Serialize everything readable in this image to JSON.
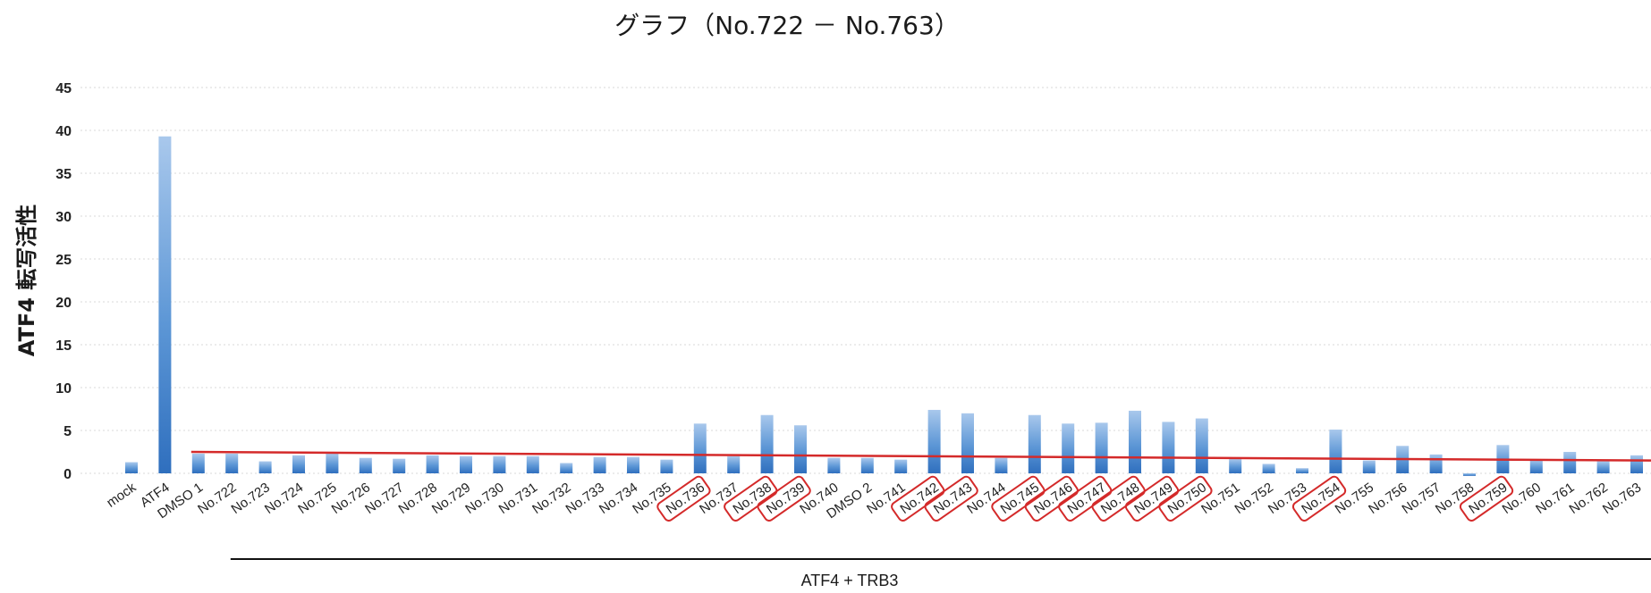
{
  "chart_data": {
    "type": "bar",
    "title": "グラフ（No.722 － No.763）",
    "ylabel": "ATF4 転写活性",
    "xlabel": "",
    "ylim": [
      0,
      45
    ],
    "yticks": [
      0,
      5,
      10,
      15,
      20,
      25,
      30,
      35,
      40,
      45
    ],
    "grid": true,
    "categories": [
      "mock",
      "ATF4",
      "DMSO 1",
      "No.722",
      "No.723",
      "No.724",
      "No.725",
      "No.726",
      "No.727",
      "No.728",
      "No.729",
      "No.730",
      "No.731",
      "No.732",
      "No.733",
      "No.734",
      "No.735",
      "No.736",
      "No.737",
      "No.738",
      "No.739",
      "No.740",
      "DMSO 2",
      "No.741",
      "No.742",
      "No.743",
      "No.744",
      "No.745",
      "No.746",
      "No.747",
      "No.748",
      "No.749",
      "No.750",
      "No.751",
      "No.752",
      "No.753",
      "No.754",
      "No.755",
      "No.756",
      "No.757",
      "No.758",
      "No.759",
      "No.760",
      "No.761",
      "No.762",
      "No.763"
    ],
    "values": [
      1.3,
      39.3,
      2.3,
      2.3,
      1.4,
      2.1,
      2.3,
      1.8,
      1.7,
      2.1,
      2.0,
      2.0,
      2.0,
      1.2,
      1.9,
      1.9,
      1.6,
      5.8,
      2.0,
      6.8,
      5.6,
      1.8,
      1.8,
      1.6,
      7.4,
      7.0,
      1.8,
      6.8,
      5.8,
      5.9,
      7.3,
      6.0,
      6.4,
      1.7,
      1.1,
      0.6,
      5.1,
      1.5,
      3.2,
      2.2,
      -0.3,
      3.3,
      1.6,
      2.5,
      1.4,
      2.1
    ],
    "highlighted": [
      "No.736",
      "No.738",
      "No.739",
      "No.742",
      "No.743",
      "No.745",
      "No.746",
      "No.747",
      "No.748",
      "No.749",
      "No.750",
      "No.754",
      "No.759"
    ],
    "baseline": {
      "from": "DMSO 1",
      "to": "No.763",
      "start_value": 2.5,
      "end_value": 1.5,
      "color": "#d42a2a"
    },
    "group": {
      "label": "ATF4 + TRB3",
      "from": "DMSO 1",
      "to": "No.763"
    },
    "bar_color": "#3d7fc9",
    "highlight_color": "#d42a2a"
  }
}
